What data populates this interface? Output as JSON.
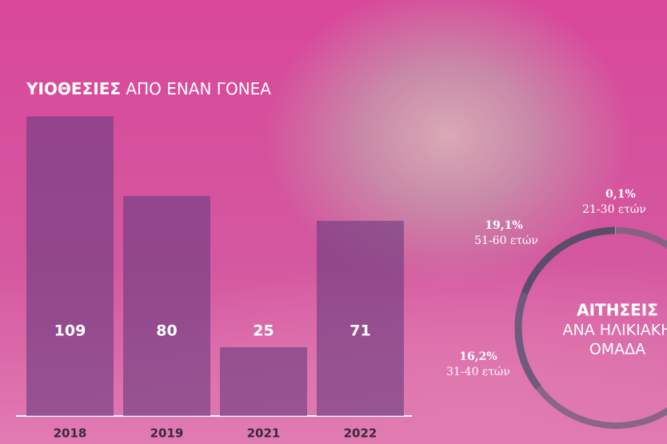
{
  "chart_data": [
    {
      "type": "bar",
      "title_bold": "ΥΙΟΘΕΣΙΕΣ",
      "title_rest": "ΑΠΟ ΕΝΑΝ ΓΟΝΕΑ",
      "categories": [
        "2018",
        "2019",
        "2021",
        "2022"
      ],
      "values": [
        109,
        80,
        25,
        71
      ],
      "color": "#6a3d80",
      "ylim": [
        0,
        110
      ]
    },
    {
      "type": "pie",
      "title_lines": [
        "ΑΙΤΗΣΕΙΣ",
        "ΑΝΑ ΗΛΙΚΙΑΚΗ",
        "ΟΜΑΔΑ"
      ],
      "categories": [
        "21-30 ετών",
        "51-60 ετών",
        "31-40 ετών"
      ],
      "values": [
        0.1,
        19.1,
        16.2
      ],
      "value_labels": [
        "0,1%",
        "19,1%",
        "16,2%"
      ],
      "colors": [
        "#d8c7d2",
        "#5b4d6a",
        "#6e5a7c"
      ]
    }
  ]
}
